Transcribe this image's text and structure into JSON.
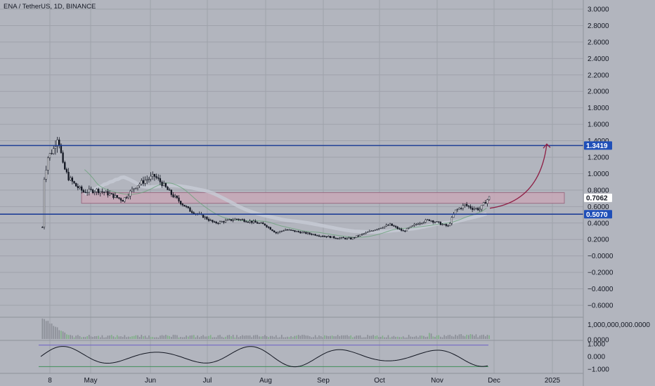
{
  "header": {
    "symbol_title": "ENA / TetherUS, 1D, BINANCE"
  },
  "colors": {
    "background": "#b2b5be",
    "grid": "#9fa2ab",
    "candle": "#131722",
    "level_line": "#1f3f96",
    "zone_fill": "#c9a7b6",
    "zone_stroke": "#9c6d84",
    "projection_arrow": "#8e1f45",
    "current_tag_bg": "#ffffff",
    "level_tag_bg": "#1f4fb8",
    "volume_bar": "#8a8d96",
    "oscillator_line": "#131722",
    "osc_upper_band": "#6d5fc7",
    "osc_lower_band": "#3f8f5a"
  },
  "chart_data": [
    {
      "type": "candlestick",
      "title": "ENA / TetherUS, 1D, BINANCE",
      "x_ticks": [
        "8",
        "May",
        "Jun",
        "Jul",
        "Aug",
        "Sep",
        "Oct",
        "Nov",
        "Dec",
        "2025"
      ],
      "y_ticks": [
        "3.0000",
        "2.8000",
        "2.6000",
        "2.4000",
        "2.2000",
        "2.0000",
        "1.8000",
        "1.6000",
        "1.4000",
        "1.2000",
        "1.0000",
        "0.8000",
        "0.6000",
        "0.4000",
        "0.2000",
        "−0.0000",
        "−0.2000",
        "−0.4000",
        "−0.6000"
      ],
      "ylim": [
        -0.65,
        3.05
      ],
      "price_path": {
        "dates": [
          "2024-04-02",
          "2024-04-03",
          "2024-04-05",
          "2024-04-08",
          "2024-04-10",
          "2024-04-11",
          "2024-04-13",
          "2024-04-16",
          "2024-04-20",
          "2024-04-24",
          "2024-05-01",
          "2024-05-08",
          "2024-05-15",
          "2024-05-22",
          "2024-05-27",
          "2024-06-01",
          "2024-06-05",
          "2024-06-10",
          "2024-06-15",
          "2024-06-20",
          "2024-06-27",
          "2024-07-03",
          "2024-07-08",
          "2024-07-15",
          "2024-07-22",
          "2024-07-30",
          "2024-08-05",
          "2024-08-10",
          "2024-08-20",
          "2024-08-28",
          "2024-09-06",
          "2024-09-14",
          "2024-09-22",
          "2024-09-29",
          "2024-10-05",
          "2024-10-12",
          "2024-10-20",
          "2024-10-26",
          "2024-11-01",
          "2024-11-05",
          "2024-11-09",
          "2024-11-14",
          "2024-11-18",
          "2024-11-22",
          "2024-11-25",
          "2024-11-27"
        ],
        "close": [
          0.35,
          0.95,
          1.2,
          1.3,
          1.45,
          1.38,
          1.1,
          0.95,
          0.85,
          0.78,
          0.8,
          0.75,
          0.68,
          0.85,
          0.92,
          0.97,
          0.88,
          0.75,
          0.65,
          0.55,
          0.48,
          0.4,
          0.42,
          0.45,
          0.42,
          0.38,
          0.28,
          0.32,
          0.28,
          0.25,
          0.22,
          0.21,
          0.28,
          0.34,
          0.38,
          0.3,
          0.4,
          0.44,
          0.39,
          0.36,
          0.55,
          0.62,
          0.58,
          0.57,
          0.66,
          0.71
        ]
      },
      "horizontal_levels": [
        {
          "label": "1.3419",
          "value": 1.3419
        },
        {
          "label": "0.5070",
          "value": 0.507
        }
      ],
      "current_price": {
        "label": "0.7062",
        "value": 0.7062
      },
      "resistance_zone": {
        "low": 0.64,
        "high": 0.77
      },
      "projection": {
        "from_value": 0.58,
        "to_value": 1.36
      },
      "volume_axis_labels": [
        "1,000,000,000.0000",
        "0.0000"
      ],
      "oscillator_axis_labels": [
        "1.000",
        "0.000",
        "−1.000"
      ],
      "oscillator_bands": [
        0.9,
        -0.8
      ]
    }
  ]
}
